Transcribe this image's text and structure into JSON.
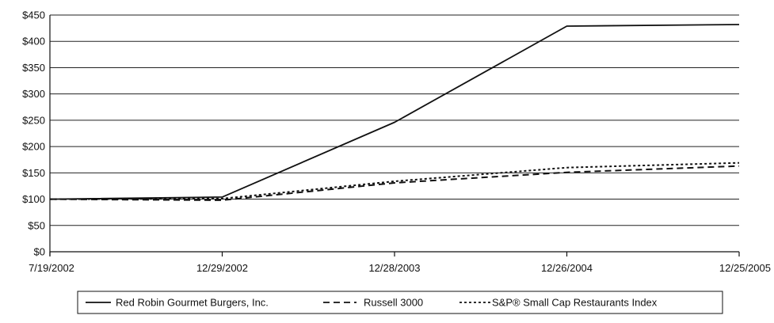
{
  "chart_data": {
    "type": "line",
    "title": "",
    "xlabel": "",
    "ylabel": "",
    "categories": [
      "7/19/2002",
      "12/29/2002",
      "12/28/2003",
      "12/26/2004",
      "12/25/2005"
    ],
    "ylim": [
      0,
      450
    ],
    "yticks": [
      0,
      50,
      100,
      150,
      200,
      250,
      300,
      350,
      400,
      450
    ],
    "ytick_labels": [
      "$0",
      "$50",
      "$100",
      "$150",
      "$200",
      "$250",
      "$300",
      "$350",
      "$400",
      "$450"
    ],
    "grid": "horizontal",
    "legend_position": "bottom",
    "series": [
      {
        "name": "Red Robin Gourmet Burgers, Inc.",
        "style": "solid",
        "color": "#111111",
        "values": [
          100,
          104,
          246,
          429,
          432
        ]
      },
      {
        "name": "Russell 3000",
        "style": "dashed",
        "color": "#111111",
        "values": [
          100,
          98,
          131,
          151,
          163
        ]
      },
      {
        "name": "S&P® Small Cap Restaurants Index",
        "style": "dotted",
        "color": "#111111",
        "values": [
          100,
          101,
          134,
          160,
          169
        ]
      }
    ]
  }
}
